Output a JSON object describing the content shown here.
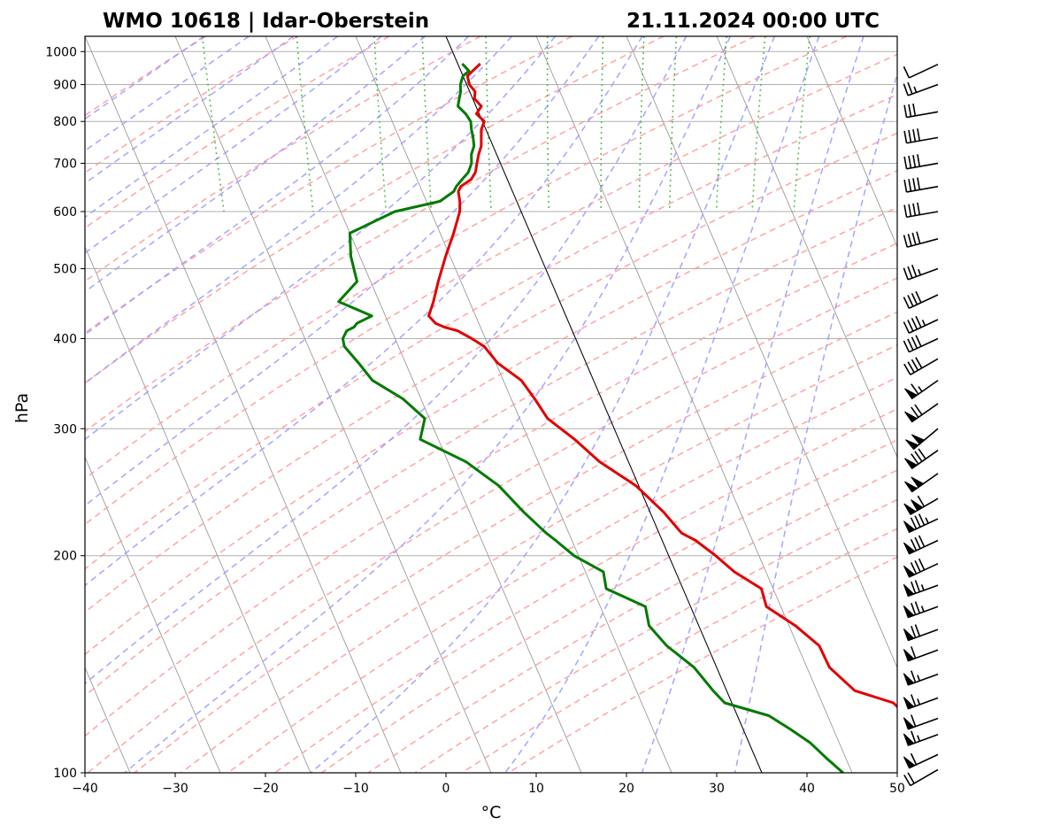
{
  "chart_data": {
    "type": "line",
    "title_left": "WMO 10618 | Idar-Oberstein",
    "title_right": "21.11.2024 00:00 UTC",
    "xlabel": "°C",
    "ylabel": "hPa",
    "xlim": [
      -40,
      50
    ],
    "ylim": [
      1050,
      100
    ],
    "y_scale": "log",
    "x_ticks": [
      -40,
      -30,
      -20,
      -10,
      0,
      10,
      20,
      30,
      40,
      50
    ],
    "x_tick_labels": [
      "−40",
      "−30",
      "−20",
      "−10",
      "0",
      "10",
      "20",
      "30",
      "40",
      "50"
    ],
    "y_ticks": [
      1000,
      900,
      800,
      700,
      600,
      500,
      400,
      300,
      200,
      100
    ],
    "y_tick_labels": [
      "1000",
      "900",
      "800",
      "700",
      "600",
      "500",
      "400",
      "300",
      "200",
      "100"
    ],
    "grid": true,
    "colors": {
      "temperature": "#e00000",
      "dewpoint": "#007a00",
      "dry_adiabats": "#ff9a9a",
      "moist_adiabats": "#9a9aff",
      "mixing_ratio": "#3cb33c",
      "isotherms": "#9a9a9a",
      "zero_isotherm": "#000000"
    },
    "series": [
      {
        "role": "temperature",
        "pressure": [
          962,
          940,
          925,
          900,
          880,
          860,
          840,
          820,
          800,
          780,
          760,
          740,
          720,
          700,
          680,
          665,
          650,
          640,
          620,
          600,
          560,
          520,
          480,
          450,
          430,
          420,
          415,
          410,
          400,
          390,
          370,
          350,
          330,
          310,
          290,
          270,
          250,
          230,
          215,
          210,
          200,
          190,
          180,
          170,
          160,
          150,
          140,
          130,
          125,
          120,
          115,
          110,
          105,
          100
        ],
        "temperature": [
          2.5,
          1.3,
          0.5,
          0.3,
          0.6,
          0.2,
          0.6,
          -0.3,
          0.2,
          -0.5,
          -0.9,
          -1.3,
          -2.0,
          -2.6,
          -3.2,
          -4.0,
          -5.5,
          -6.0,
          -6.3,
          -6.8,
          -8.5,
          -10.5,
          -12.5,
          -14.0,
          -15.2,
          -14.8,
          -14.0,
          -12.7,
          -11.5,
          -10.5,
          -9.8,
          -8.0,
          -7.4,
          -6.9,
          -4.9,
          -3.2,
          -0.3,
          1.5,
          2.5,
          3.7,
          5.2,
          6.5,
          8.7,
          8.4,
          10.7,
          12.4,
          12.5,
          14.2,
          17.9,
          18.7,
          18.9,
          20.1,
          20.5,
          21.2
        ],
        "dewpoint": [
          0.5,
          0.9,
          0.0,
          -0.7,
          -1.0,
          -1.5,
          -2.0,
          -1.5,
          -1.3,
          -1.6,
          -1.8,
          -2.1,
          -2.8,
          -3.2,
          -4.0,
          -5.0,
          -6.0,
          -6.5,
          -8.5,
          -14.0,
          -20.0,
          -21.0,
          -21.5,
          -24.5,
          -21.5,
          -23.5,
          -24.0,
          -25.0,
          -25.8,
          -26.0,
          -25.2,
          -24.5,
          -22.0,
          -20.5,
          -22.0,
          -18.0,
          -15.5,
          -14.0,
          -12.5,
          -11.8,
          -10.5,
          -8.0,
          -8.5,
          -5.0,
          -5.5,
          -4.5,
          -2.5,
          -1.5,
          -0.8,
          3.5,
          5.2,
          6.8,
          7.8,
          9.0
        ]
      }
    ],
    "wind_barbs": [
      {
        "p": 960,
        "dir": 245,
        "spd": 10
      },
      {
        "p": 900,
        "dir": 250,
        "spd": 25
      },
      {
        "p": 825,
        "dir": 260,
        "spd": 30
      },
      {
        "p": 760,
        "dir": 260,
        "spd": 40
      },
      {
        "p": 700,
        "dir": 260,
        "spd": 40
      },
      {
        "p": 650,
        "dir": 260,
        "spd": 40
      },
      {
        "p": 600,
        "dir": 260,
        "spd": 40
      },
      {
        "p": 550,
        "dir": 255,
        "spd": 40
      },
      {
        "p": 500,
        "dir": 250,
        "spd": 35
      },
      {
        "p": 460,
        "dir": 245,
        "spd": 40
      },
      {
        "p": 425,
        "dir": 245,
        "spd": 45
      },
      {
        "p": 400,
        "dir": 245,
        "spd": 40
      },
      {
        "p": 375,
        "dir": 240,
        "spd": 40
      },
      {
        "p": 350,
        "dir": 235,
        "spd": 65
      },
      {
        "p": 325,
        "dir": 235,
        "spd": 70
      },
      {
        "p": 300,
        "dir": 230,
        "spd": 100
      },
      {
        "p": 280,
        "dir": 235,
        "spd": 80
      },
      {
        "p": 260,
        "dir": 235,
        "spd": 100
      },
      {
        "p": 240,
        "dir": 240,
        "spd": 110
      },
      {
        "p": 225,
        "dir": 245,
        "spd": 85
      },
      {
        "p": 210,
        "dir": 245,
        "spd": 80
      },
      {
        "p": 195,
        "dir": 245,
        "spd": 80
      },
      {
        "p": 182,
        "dir": 250,
        "spd": 75
      },
      {
        "p": 170,
        "dir": 250,
        "spd": 75
      },
      {
        "p": 158,
        "dir": 250,
        "spd": 70
      },
      {
        "p": 148,
        "dir": 250,
        "spd": 60
      },
      {
        "p": 137,
        "dir": 250,
        "spd": 65
      },
      {
        "p": 127,
        "dir": 250,
        "spd": 65
      },
      {
        "p": 119,
        "dir": 250,
        "spd": 60
      },
      {
        "p": 113,
        "dir": 250,
        "spd": 65
      },
      {
        "p": 106,
        "dir": 245,
        "spd": 60
      },
      {
        "p": 101,
        "dir": 240,
        "spd": 20
      }
    ]
  }
}
